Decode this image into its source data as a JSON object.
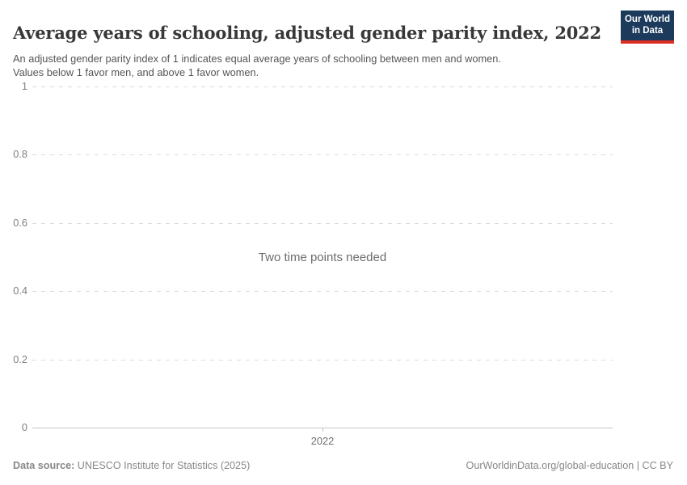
{
  "header": {
    "title": "Average years of schooling, adjusted gender parity index, 2022",
    "subtitle": "An adjusted gender parity index of 1 indicates equal average years of schooling between men and women.\nValues below 1 favor men, and above 1 favor women.",
    "logo": {
      "line1": "Our World",
      "line2": "in Data",
      "background_color": "#1b3a5c",
      "stripe_color": "#dc2e23"
    }
  },
  "chart": {
    "empty_message": "Two time points needed",
    "y_tick_labels": [
      "1",
      "0.8",
      "0.6",
      "0.4",
      "0.2",
      "0"
    ],
    "x_tick_label": "2022"
  },
  "footer": {
    "source_label": "Data source:",
    "source_text": " UNESCO Institute for Statistics (2025)",
    "right_text": "OurWorldinData.org/global-education | CC BY"
  },
  "chart_data": {
    "type": "line",
    "title": "Average years of schooling, adjusted gender parity index, 2022",
    "subtitle": "An adjusted gender parity index of 1 indicates equal average years of schooling between men and women. Values below 1 favor men, and above 1 favor women.",
    "series": [],
    "empty_state_message": "Two time points needed",
    "x_ticks": [
      2022
    ],
    "y_ticks": [
      0,
      0.2,
      0.4,
      0.6,
      0.8,
      1
    ],
    "ylim": [
      0,
      1
    ],
    "grid": "horizontal-dashed",
    "legend": "none"
  }
}
